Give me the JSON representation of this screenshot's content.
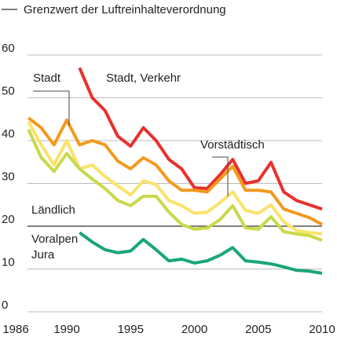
{
  "chart_data": {
    "type": "line",
    "limit": {
      "label": "Grenzwert der Luftreinhalteverordnung",
      "value": 20,
      "color": "#555555"
    },
    "x": [
      1987,
      1988,
      1989,
      1990,
      1991,
      1992,
      1993,
      1994,
      1995,
      1996,
      1997,
      1998,
      1999,
      2000,
      2001,
      2002,
      2003,
      2004,
      2005,
      2006,
      2007,
      2008,
      2009,
      2010
    ],
    "series": [
      {
        "name": "Stadt, Verkehr",
        "color": "#e8312d",
        "values": [
          null,
          null,
          null,
          null,
          57,
          50,
          47,
          41,
          38.7,
          43,
          40,
          35.6,
          33.4,
          29,
          28.8,
          32,
          35.6,
          30,
          30.6,
          34.9,
          28,
          26,
          25,
          24
        ]
      },
      {
        "name": "Stadt",
        "color": "#f39a1e",
        "values": [
          45.3,
          43,
          39,
          44.8,
          39,
          40,
          39,
          35.2,
          33.4,
          36,
          34.3,
          30.6,
          28.4,
          28.4,
          28,
          31,
          34,
          28.4,
          28.4,
          28,
          24,
          23,
          22,
          20.4
        ]
      },
      {
        "name": "Vorstädtisch",
        "color": "#fbe26a",
        "values": [
          44.4,
          39,
          34.3,
          40,
          33.4,
          34.3,
          31.6,
          29.4,
          27.3,
          30.6,
          29.7,
          26,
          24.8,
          23,
          23.3,
          25.5,
          28,
          23.7,
          23,
          25,
          21,
          19,
          18.5,
          18.2
        ]
      },
      {
        "name": "Ländlich",
        "color": "#c9d94a",
        "values": [
          42.6,
          36,
          32.8,
          37,
          33.4,
          31,
          28.8,
          26,
          24.8,
          27,
          27,
          23.3,
          20.4,
          19.3,
          19.6,
          21.5,
          24.8,
          19.6,
          19.3,
          22.2,
          18.7,
          18.2,
          17.8,
          16.7
        ]
      },
      {
        "name": "Voralpen Jura",
        "color": "#1aa57a",
        "values": [
          null,
          null,
          null,
          null,
          18.5,
          16.3,
          14.5,
          13.8,
          14.2,
          16.9,
          14.5,
          11.9,
          12.3,
          11.4,
          11.9,
          13.2,
          15,
          11.9,
          11.6,
          11.2,
          10.5,
          9.7,
          9.5,
          9
        ]
      }
    ],
    "xlim": [
      1986,
      2010
    ],
    "xticks": [
      1986,
      1990,
      1995,
      2000,
      2005,
      2010
    ],
    "ylim": [
      0,
      60
    ],
    "yticks": [
      0,
      10,
      20,
      30,
      40,
      50,
      60
    ],
    "grid": true
  }
}
